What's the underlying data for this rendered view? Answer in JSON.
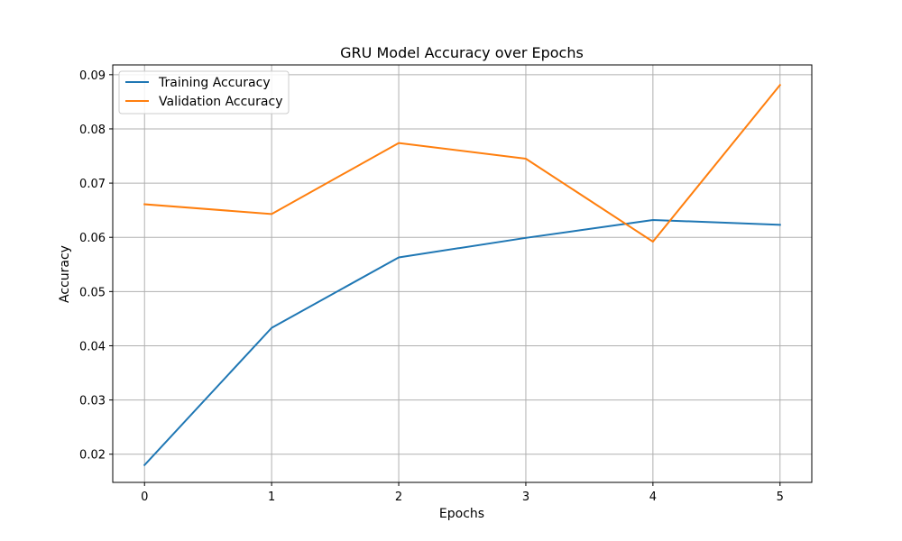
{
  "chart_data": {
    "type": "line",
    "title": "GRU Model Accuracy over Epochs",
    "xlabel": "Epochs",
    "ylabel": "Accuracy",
    "x": [
      0,
      1,
      2,
      3,
      4,
      5
    ],
    "xlim": [
      -0.25,
      5.25
    ],
    "ylim": [
      0.0148,
      0.0918
    ],
    "xticks": [
      "0",
      "1",
      "2",
      "3",
      "4",
      "5"
    ],
    "yticks": [
      "0.02",
      "0.03",
      "0.04",
      "0.05",
      "0.06",
      "0.07",
      "0.08",
      "0.09"
    ],
    "grid": true,
    "legend_position": "top-left",
    "series": [
      {
        "name": "Training Accuracy",
        "color": "#1f77b4",
        "values": [
          0.018,
          0.0433,
          0.0563,
          0.0599,
          0.0632,
          0.0623
        ]
      },
      {
        "name": "Validation Accuracy",
        "color": "#ff7f0e",
        "values": [
          0.0661,
          0.0643,
          0.0774,
          0.0745,
          0.0592,
          0.0881
        ]
      }
    ]
  }
}
